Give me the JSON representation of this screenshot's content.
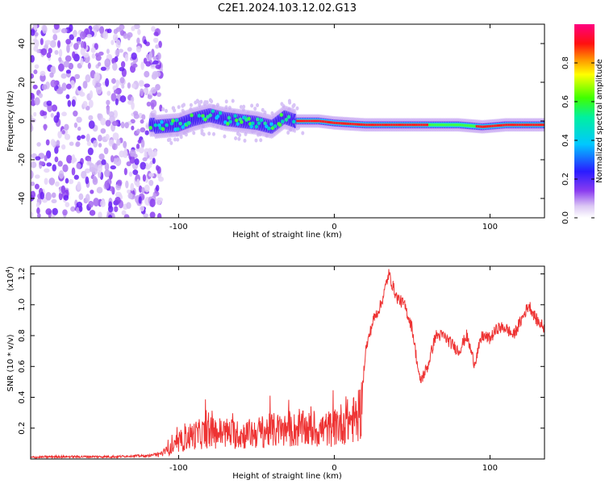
{
  "title": "C2E1.2024.103.12.02.G13",
  "chart_data": [
    {
      "type": "heatmap",
      "xlabel": "Height of straight line (km)",
      "ylabel": "Frequency (Hz)",
      "xlim": [
        -195,
        135
      ],
      "ylim": [
        -50,
        50
      ],
      "xticks": [
        -100,
        0,
        100
      ],
      "yticks": [
        -40,
        -20,
        0,
        20,
        40
      ],
      "xticklabels": [
        "-100",
        "0",
        "100"
      ],
      "yticklabels": [
        "-40",
        "-20",
        "0",
        "20",
        "40"
      ],
      "colorbar": {
        "label": "Normalized spectral amplitude",
        "range": [
          0,
          1
        ],
        "ticks": [
          "0.0",
          "0.2",
          "0.4",
          "0.6",
          "0.8"
        ],
        "tick_values": [
          0,
          0.2,
          0.4,
          0.6,
          0.8
        ],
        "colormap": "rainbow"
      },
      "features": {
        "noise_region_x": [
          -195,
          -115
        ],
        "ridge": [
          [
            -115,
            -3
          ],
          [
            -100,
            -2
          ],
          [
            -90,
            1
          ],
          [
            -80,
            3
          ],
          [
            -70,
            1
          ],
          [
            -60,
            0
          ],
          [
            -50,
            -1
          ],
          [
            -40,
            -3
          ],
          [
            -32,
            2
          ],
          [
            -25,
            0
          ],
          [
            -10,
            0
          ],
          [
            0,
            -1
          ],
          [
            20,
            -2
          ],
          [
            60,
            -2
          ],
          [
            80,
            -2
          ],
          [
            95,
            -3
          ],
          [
            110,
            -2
          ],
          [
            135,
            -2
          ]
        ]
      }
    },
    {
      "type": "line",
      "xlabel": "Height of straight line (km)",
      "ylabel": "SNR (10 * v/v)",
      "exponent_label": "(x10",
      "exponent_power": "4",
      "exponent_close": ")",
      "xlim": [
        -195,
        135
      ],
      "ylim": [
        0,
        1.25
      ],
      "xticks": [
        -100,
        0,
        100
      ],
      "yticks": [
        0.2,
        0.4,
        0.6,
        0.8,
        1.0,
        1.2
      ],
      "xticklabels": [
        "-100",
        "0",
        "100"
      ],
      "yticklabels": [
        "0.2",
        "0.4",
        "0.6",
        "0.8",
        "1.0",
        "1.2"
      ],
      "color": "#ee3333",
      "series": [
        {
          "x": [
            -195,
            -180,
            -160,
            -140,
            -130,
            -120,
            -115,
            -110,
            -100,
            -95,
            -90,
            -80,
            -70,
            -60,
            -50,
            -40,
            -30,
            -20,
            -10,
            0,
            5,
            10,
            15,
            18,
            20,
            25,
            30,
            35,
            40,
            45,
            50,
            55,
            60,
            65,
            70,
            75,
            80,
            85,
            90,
            95,
            100,
            105,
            110,
            115,
            120,
            125,
            130,
            135
          ],
          "values": [
            0.01,
            0.015,
            0.015,
            0.015,
            0.02,
            0.02,
            0.03,
            0.05,
            0.12,
            0.18,
            0.2,
            0.22,
            0.22,
            0.2,
            0.22,
            0.24,
            0.24,
            0.25,
            0.24,
            0.26,
            0.3,
            0.32,
            0.34,
            0.45,
            0.7,
            0.9,
            1.0,
            1.2,
            1.05,
            1.0,
            0.85,
            0.5,
            0.6,
            0.8,
            0.8,
            0.75,
            0.7,
            0.8,
            0.62,
            0.8,
            0.78,
            0.85,
            0.85,
            0.8,
            0.9,
            1.0,
            0.9,
            0.85
          ]
        }
      ]
    }
  ]
}
